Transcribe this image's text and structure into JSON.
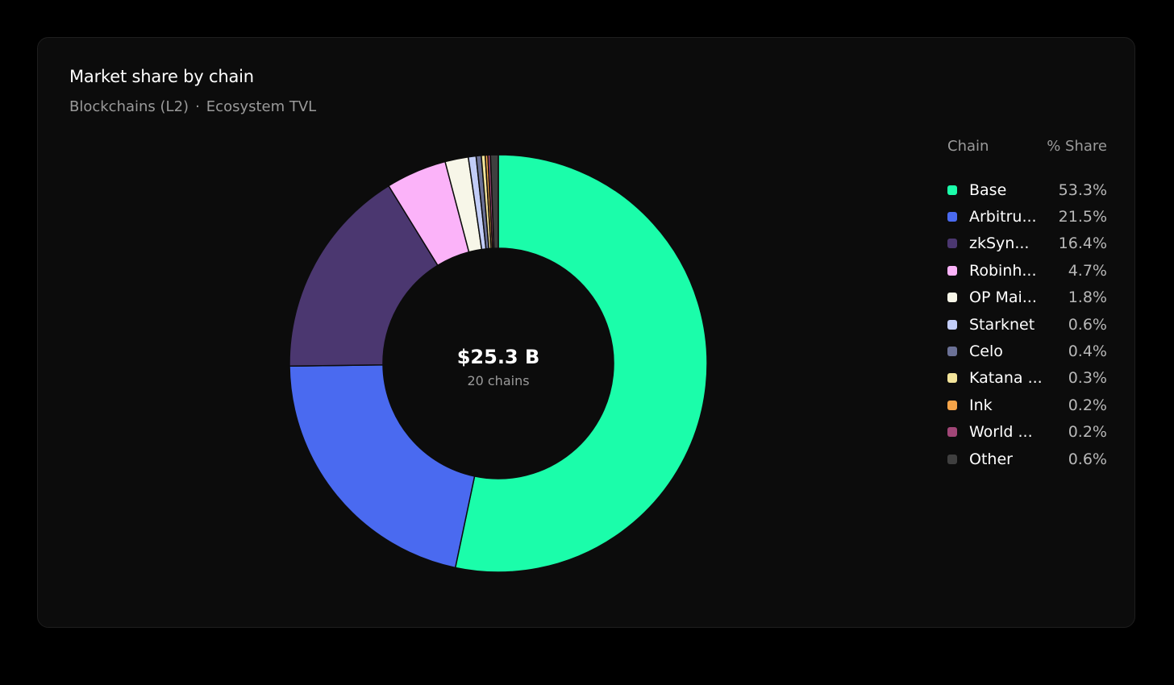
{
  "card": {
    "title": "Market share by chain",
    "subtitle_left": "Blockchains (L2)",
    "subtitle_sep": "·",
    "subtitle_right": "Ecosystem TVL"
  },
  "legend": {
    "header_chain": "Chain",
    "header_share": "% Share"
  },
  "chart_data": {
    "type": "pie",
    "style": "donut",
    "center_value": "$25.3 B",
    "center_label": "20 chains",
    "slices": [
      {
        "label": "Base",
        "value": 53.3,
        "value_label": "53.3%",
        "color": "#1bfdaa"
      },
      {
        "label": "Arbitru...",
        "value": 21.5,
        "value_label": "21.5%",
        "color": "#4a6af0"
      },
      {
        "label": "zkSyn...",
        "value": 16.4,
        "value_label": "16.4%",
        "color": "#4b3770"
      },
      {
        "label": "Robinh...",
        "value": 4.7,
        "value_label": "4.7%",
        "color": "#fbb3f9"
      },
      {
        "label": "OP Mai...",
        "value": 1.8,
        "value_label": "1.8%",
        "color": "#f7f6e8"
      },
      {
        "label": "Starknet",
        "value": 0.6,
        "value_label": "0.6%",
        "color": "#c2cdf8"
      },
      {
        "label": "Celo",
        "value": 0.4,
        "value_label": "0.4%",
        "color": "#6b7196"
      },
      {
        "label": "Katana ...",
        "value": 0.3,
        "value_label": "0.3%",
        "color": "#f3e49a"
      },
      {
        "label": "Ink",
        "value": 0.2,
        "value_label": "0.2%",
        "color": "#f5a449"
      },
      {
        "label": "World ...",
        "value": 0.2,
        "value_label": "0.2%",
        "color": "#a14677"
      },
      {
        "label": "Other",
        "value": 0.6,
        "value_label": "0.6%",
        "color": "#3f3f3f"
      }
    ]
  }
}
